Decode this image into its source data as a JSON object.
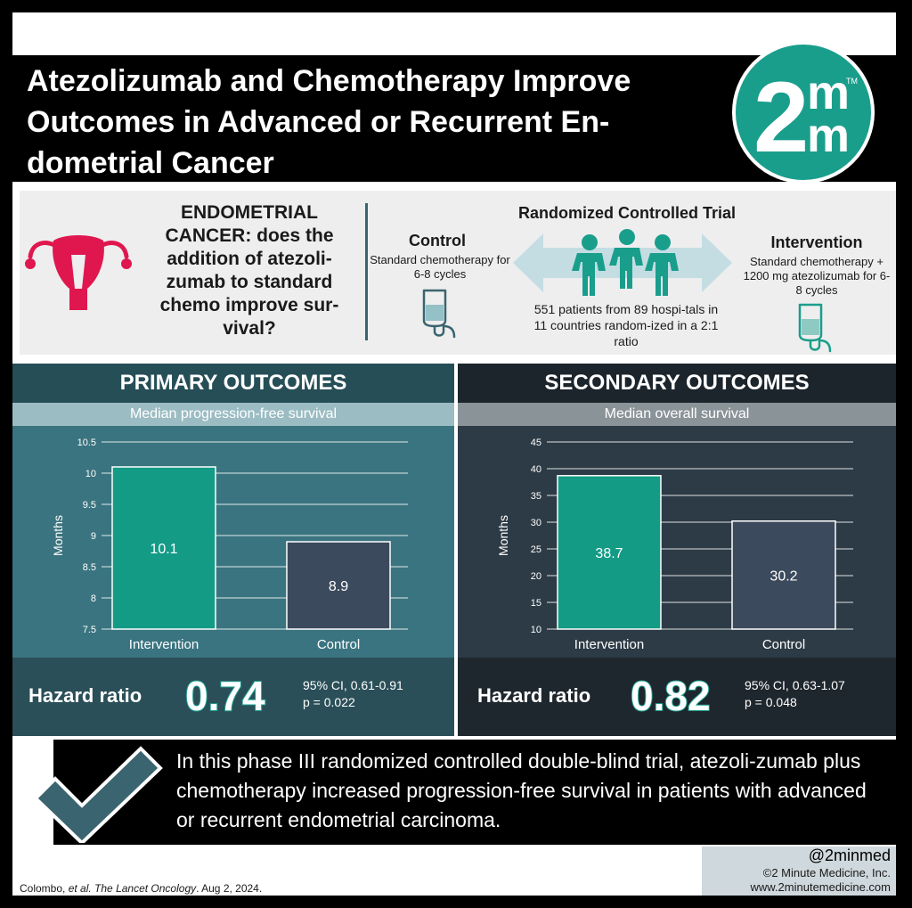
{
  "title": "Atezolizumab and Chemotherapy Improve Outcomes in Advanced or Recurrent En-dometrial Cancer",
  "logo": {
    "text_main": "2",
    "text_m1": "m",
    "text_m2": "m",
    "tm": "TM",
    "color": "#1a9e8c"
  },
  "question": {
    "lead": "ENDOMETRIAL CANCER:",
    "rest": " does the addition of atezoli-zumab to standard chemo improve sur-vival?"
  },
  "trial": {
    "heading": "Randomized Controlled Trial",
    "control_label": "Control",
    "control_desc": "Standard chemotherapy for 6-8 cycles",
    "intervention_label": "Intervention",
    "intervention_desc": "Standard chemotherapy + 1200 mg atezolizumab for 6-8 cycles",
    "patients": "551 patients from 89 hospi-tals in 11 countries random-ized in a 2:1 ratio"
  },
  "primary": {
    "heading": "PRIMARY OUTCOMES",
    "subheading": "Median progression-free survival",
    "hr_label": "Hazard ratio",
    "hr_value": "0.74",
    "ci": "95% CI, 0.61-0.91",
    "p": "p = 0.022"
  },
  "secondary": {
    "heading": "SECONDARY OUTCOMES",
    "subheading": "Median overall survival",
    "hr_label": "Hazard ratio",
    "hr_value": "0.82",
    "ci": "95% CI, 0.63-1.07",
    "p": "p = 0.048"
  },
  "chart_data": [
    {
      "type": "bar",
      "categories": [
        "Intervention",
        "Control"
      ],
      "values": [
        10.1,
        8.9
      ],
      "value_labels": [
        "10.1",
        "8.9"
      ],
      "ylabel": "Months",
      "ylim": [
        7.5,
        10.5
      ],
      "yticks": [
        "7.5",
        "8",
        "8.5",
        "9",
        "9.5",
        "10",
        "10.5"
      ],
      "grid": true,
      "bar_colors": [
        "#139b86",
        "#3c4a5d"
      ]
    },
    {
      "type": "bar",
      "categories": [
        "Intervention",
        "Control"
      ],
      "values": [
        38.7,
        30.2
      ],
      "value_labels": [
        "38.7",
        "30.2"
      ],
      "ylabel": "Months",
      "ylim": [
        10,
        45
      ],
      "yticks": [
        "10",
        "15",
        "20",
        "25",
        "30",
        "35",
        "40",
        "45"
      ],
      "grid": true,
      "bar_colors": [
        "#139b86",
        "#3c4a5d"
      ]
    }
  ],
  "conclusion": "In this phase III randomized controlled double-blind trial, atezoli-zumab plus chemotherapy increased progression-free survival in patients with advanced or recurrent endometrial carcinoma.",
  "footer": {
    "handle": "@2minmed",
    "copyright": "©2 Minute Medicine, Inc.",
    "url": "www.2minutemedicine.com",
    "authors": "Colombo, ",
    "etal": "et al.",
    "journal": " The Lancet Oncology",
    "date": ". Aug 2, 2024."
  },
  "colors": {
    "primary_panel": "#3a7480",
    "primary_dark": "#2a4f58",
    "secondary_panel": "#2d3b46",
    "secondary_dark": "#1f272e",
    "teal": "#1a9e8c",
    "uterus": "#e0174f"
  }
}
